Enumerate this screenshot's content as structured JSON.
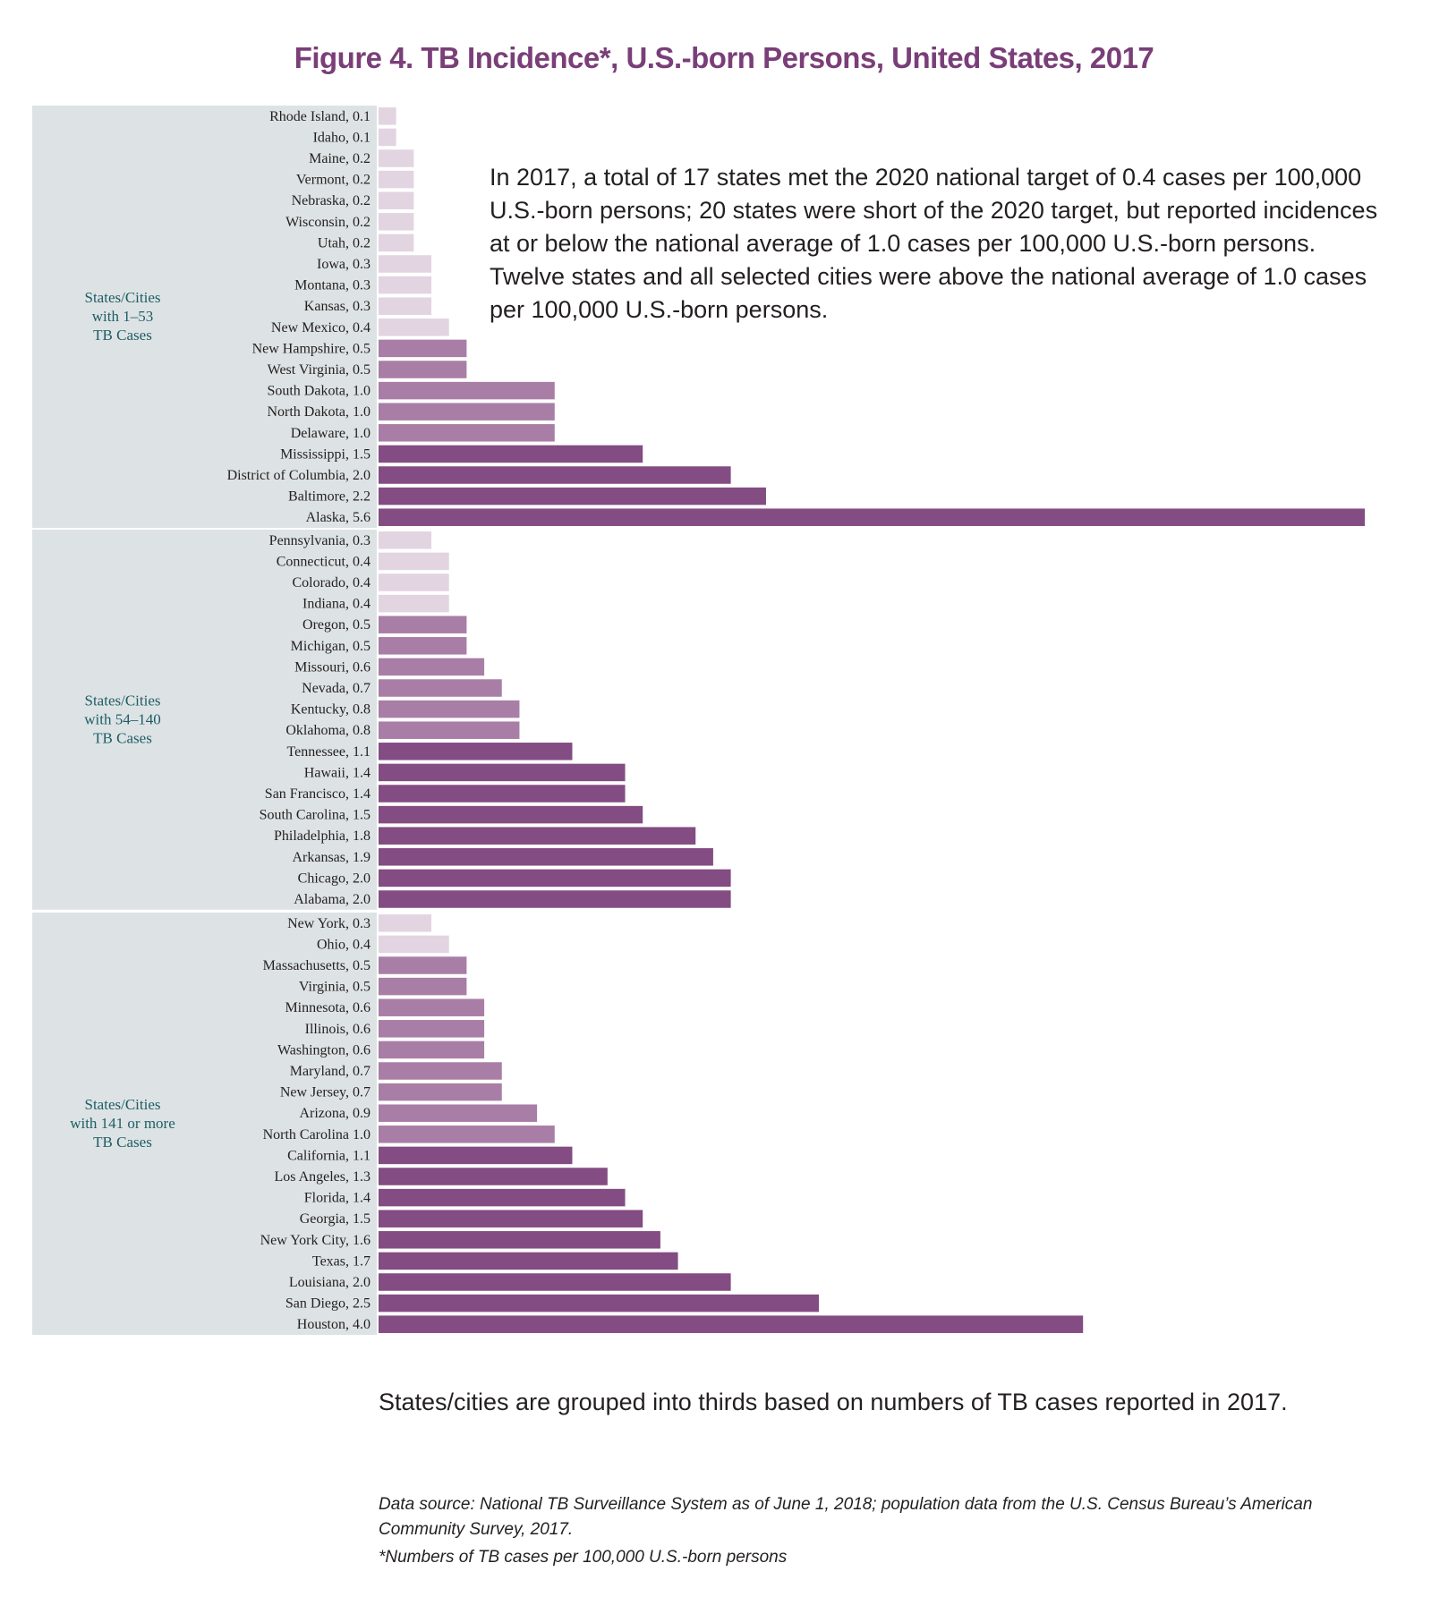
{
  "title": "Figure 4. TB Incidence*, U.S.-born Persons, United States, 2017",
  "annotation": "In 2017, a total of 17 states met the 2020 national target of 0.4 cases per 100,000 U.S.-born persons; 20 states were short of the 2020 target, but reported incidences at or below the national average of 1.0 cases per 100,000 U.S.-born persons. Twelve states and all selected cities were above the national average of 1.0 cases per 100,000 U.S.-born persons.",
  "grouping_note": "States/cities are grouped into thirds based on numbers of  TB cases reported in 2017.",
  "data_source": "Data source: National TB Surveillance System as of June 1, 2018; population data from the U.S. Census Bureau’s American Community Survey, 2017.",
  "footnote": "*Numbers of TB cases per 100,000 U.S.-born persons",
  "colors": {
    "light": "#e2d4e0",
    "medium": "#a97ea6",
    "dark": "#834c82",
    "group_background": "#dde3e4",
    "group_label": "#1f5c66",
    "title": "#7a3e78"
  },
  "chart_data": {
    "type": "bar",
    "orientation": "horizontal",
    "color_bins": {
      "light": "0.4 or less (met 2020 target)",
      "medium": "above 0.4 and at or below 1.0",
      "dark": "above 1.0"
    },
    "groups": [
      {
        "label": [
          "States/Cities",
          "with 1–53",
          "TB Cases"
        ],
        "bars": [
          {
            "label": "Rhode Island, 0.1",
            "name": "Rhode Island",
            "value": 0.1
          },
          {
            "label": "Idaho, 0.1",
            "name": "Idaho",
            "value": 0.1
          },
          {
            "label": "Maine, 0.2",
            "name": "Maine",
            "value": 0.2
          },
          {
            "label": "Vermont, 0.2",
            "name": "Vermont",
            "value": 0.2
          },
          {
            "label": "Nebraska, 0.2",
            "name": "Nebraska",
            "value": 0.2
          },
          {
            "label": "Wisconsin, 0.2",
            "name": "Wisconsin",
            "value": 0.2
          },
          {
            "label": "Utah, 0.2",
            "name": "Utah",
            "value": 0.2
          },
          {
            "label": "Iowa, 0.3",
            "name": "Iowa",
            "value": 0.3
          },
          {
            "label": "Montana, 0.3",
            "name": "Montana",
            "value": 0.3
          },
          {
            "label": "Kansas, 0.3",
            "name": "Kansas",
            "value": 0.3
          },
          {
            "label": "New Mexico, 0.4",
            "name": "New Mexico",
            "value": 0.4
          },
          {
            "label": "New Hampshire, 0.5",
            "name": "New Hampshire",
            "value": 0.5
          },
          {
            "label": "West Virginia, 0.5",
            "name": "West Virginia",
            "value": 0.5
          },
          {
            "label": "South Dakota, 1.0",
            "name": "South Dakota",
            "value": 1.0
          },
          {
            "label": "North Dakota, 1.0",
            "name": "North Dakota",
            "value": 1.0
          },
          {
            "label": "Delaware, 1.0",
            "name": "Delaware",
            "value": 1.0
          },
          {
            "label": "Mississippi, 1.5",
            "name": "Mississippi",
            "value": 1.5
          },
          {
            "label": "District of Columbia, 2.0",
            "name": "District of Columbia",
            "value": 2.0
          },
          {
            "label": "Baltimore, 2.2",
            "name": "Baltimore",
            "value": 2.2
          },
          {
            "label": "Alaska, 5.6",
            "name": "Alaska",
            "value": 5.6
          }
        ]
      },
      {
        "label": [
          "States/Cities",
          "with 54–140",
          "TB Cases"
        ],
        "bars": [
          {
            "label": "Pennsylvania, 0.3",
            "name": "Pennsylvania",
            "value": 0.3
          },
          {
            "label": "Connecticut, 0.4",
            "name": "Connecticut",
            "value": 0.4
          },
          {
            "label": "Colorado, 0.4",
            "name": "Colorado",
            "value": 0.4
          },
          {
            "label": "Indiana, 0.4",
            "name": "Indiana",
            "value": 0.4
          },
          {
            "label": "Oregon, 0.5",
            "name": "Oregon",
            "value": 0.5
          },
          {
            "label": "Michigan, 0.5",
            "name": "Michigan",
            "value": 0.5
          },
          {
            "label": "Missouri, 0.6",
            "name": "Missouri",
            "value": 0.6
          },
          {
            "label": "Nevada, 0.7",
            "name": "Nevada",
            "value": 0.7
          },
          {
            "label": "Kentucky, 0.8",
            "name": "Kentucky",
            "value": 0.8
          },
          {
            "label": "Oklahoma, 0.8",
            "name": "Oklahoma",
            "value": 0.8
          },
          {
            "label": "Tennessee, 1.1",
            "name": "Tennessee",
            "value": 1.1
          },
          {
            "label": "Hawaii, 1.4",
            "name": "Hawaii",
            "value": 1.4
          },
          {
            "label": "San Francisco, 1.4",
            "name": "San Francisco",
            "value": 1.4
          },
          {
            "label": "South Carolina, 1.5",
            "name": "South Carolina",
            "value": 1.5
          },
          {
            "label": "Philadelphia, 1.8",
            "name": "Philadelphia",
            "value": 1.8
          },
          {
            "label": "Arkansas, 1.9",
            "name": "Arkansas",
            "value": 1.9
          },
          {
            "label": "Chicago, 2.0",
            "name": "Chicago",
            "value": 2.0
          },
          {
            "label": "Alabama, 2.0",
            "name": "Alabama",
            "value": 2.0
          }
        ]
      },
      {
        "label": [
          "States/Cities",
          "with 141 or more",
          "TB Cases"
        ],
        "bars": [
          {
            "label": "New York, 0.3",
            "name": "New York",
            "value": 0.3
          },
          {
            "label": "Ohio, 0.4",
            "name": "Ohio",
            "value": 0.4
          },
          {
            "label": "Massachusetts, 0.5",
            "name": "Massachusetts",
            "value": 0.5
          },
          {
            "label": "Virginia, 0.5",
            "name": "Virginia",
            "value": 0.5
          },
          {
            "label": "Minnesota, 0.6",
            "name": "Minnesota",
            "value": 0.6
          },
          {
            "label": "Illinois, 0.6",
            "name": "Illinois",
            "value": 0.6
          },
          {
            "label": "Washington, 0.6",
            "name": "Washington",
            "value": 0.6
          },
          {
            "label": "Maryland, 0.7",
            "name": "Maryland",
            "value": 0.7
          },
          {
            "label": "New Jersey, 0.7",
            "name": "New Jersey",
            "value": 0.7
          },
          {
            "label": "Arizona, 0.9",
            "name": "Arizona",
            "value": 0.9
          },
          {
            "label": "North Carolina 1.0",
            "name": "North Carolina",
            "value": 1.0
          },
          {
            "label": "California, 1.1",
            "name": "California",
            "value": 1.1
          },
          {
            "label": "Los Angeles, 1.3",
            "name": "Los Angeles",
            "value": 1.3
          },
          {
            "label": "Florida, 1.4",
            "name": "Florida",
            "value": 1.4
          },
          {
            "label": "Georgia, 1.5",
            "name": "Georgia",
            "value": 1.5
          },
          {
            "label": "New York City, 1.6",
            "name": "New York City",
            "value": 1.6
          },
          {
            "label": "Texas, 1.7",
            "name": "Texas",
            "value": 1.7
          },
          {
            "label": "Louisiana, 2.0",
            "name": "Louisiana",
            "value": 2.0
          },
          {
            "label": "San Diego, 2.5",
            "name": "San Diego",
            "value": 2.5
          },
          {
            "label": "Houston, 4.0",
            "name": "Houston",
            "value": 4.0
          }
        ]
      }
    ]
  }
}
